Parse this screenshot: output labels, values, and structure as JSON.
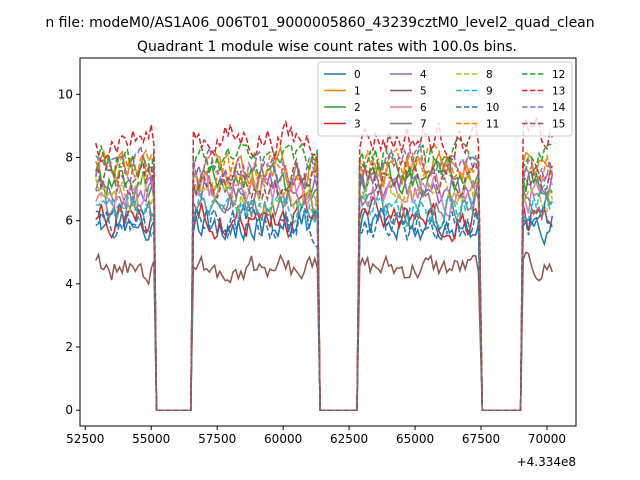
{
  "chart_data": {
    "type": "line",
    "suptitle": "n file: modeM0/AS1A06_006T01_9000005860_43239cztM0_level2_quad_clean",
    "title": "Quadrant 1 module wise count rates with 100.0s bins.",
    "xlabel": "",
    "ylabel": "",
    "x_offset_label": "+4.334e8",
    "xlim": [
      52300,
      71100
    ],
    "ylim": [
      -0.5,
      11.15
    ],
    "x_ticks": [
      52500,
      55000,
      57500,
      60000,
      62500,
      65000,
      67500,
      70000
    ],
    "x_tick_labels": [
      "52500",
      "55000",
      "57500",
      "60000",
      "62500",
      "65000",
      "67500",
      "70000"
    ],
    "y_ticks": [
      0,
      2,
      4,
      6,
      8,
      10
    ],
    "y_tick_labels": [
      "0",
      "2",
      "4",
      "6",
      "8",
      "10"
    ],
    "grid": false,
    "legend": {
      "placement": "top-right",
      "columns": 4,
      "entries": [
        "0",
        "1",
        "2",
        "3",
        "4",
        "5",
        "6",
        "7",
        "8",
        "9",
        "10",
        "11",
        "12",
        "13",
        "14",
        "15"
      ]
    },
    "bin_seconds": 100,
    "segments": [
      {
        "start": 52900,
        "end": 55100
      },
      {
        "start": 56600,
        "end": 61300
      },
      {
        "start": 62900,
        "end": 67450
      },
      {
        "start": 69100,
        "end": 70250
      }
    ],
    "gap_value": 0,
    "series": [
      {
        "name": "0",
        "color": "#1f77b4",
        "dash": "solid",
        "mean": 5.9,
        "amplitude": 0.45
      },
      {
        "name": "1",
        "color": "#ff7f0e",
        "dash": "solid",
        "mean": 7.6,
        "amplitude": 0.45
      },
      {
        "name": "2",
        "color": "#2ca02c",
        "dash": "solid",
        "mean": 7.2,
        "amplitude": 0.45
      },
      {
        "name": "3",
        "color": "#d62728",
        "dash": "solid",
        "mean": 6.1,
        "amplitude": 0.45
      },
      {
        "name": "4",
        "color": "#9467bd",
        "dash": "solid",
        "mean": 7.0,
        "amplitude": 0.45
      },
      {
        "name": "5",
        "color": "#8c564b",
        "dash": "solid",
        "mean": 4.5,
        "amplitude": 0.35
      },
      {
        "name": "6",
        "color": "#e377c2",
        "dash": "solid",
        "mean": 6.8,
        "amplitude": 0.45
      },
      {
        "name": "7",
        "color": "#7f7f7f",
        "dash": "solid",
        "mean": 6.6,
        "amplitude": 0.45
      },
      {
        "name": "8",
        "color": "#bcbd22",
        "dash": "dashed",
        "mean": 6.9,
        "amplitude": 0.45
      },
      {
        "name": "9",
        "color": "#17becf",
        "dash": "dashed",
        "mean": 6.4,
        "amplitude": 0.45
      },
      {
        "name": "10",
        "color": "#1f77b4",
        "dash": "dashed",
        "mean": 5.9,
        "amplitude": 0.45
      },
      {
        "name": "11",
        "color": "#ff7f0e",
        "dash": "dashed",
        "mean": 7.7,
        "amplitude": 0.45
      },
      {
        "name": "12",
        "color": "#2ca02c",
        "dash": "dashed",
        "mean": 7.9,
        "amplitude": 0.45
      },
      {
        "name": "13",
        "color": "#d62728",
        "dash": "dashed",
        "mean": 8.6,
        "amplitude": 0.45
      },
      {
        "name": "14",
        "color": "#9467bd",
        "dash": "dashed",
        "mean": 7.7,
        "amplitude": 0.45
      },
      {
        "name": "15",
        "color": "#8c564b",
        "dash": "dashed",
        "mean": 7.3,
        "amplitude": 0.45
      }
    ]
  }
}
